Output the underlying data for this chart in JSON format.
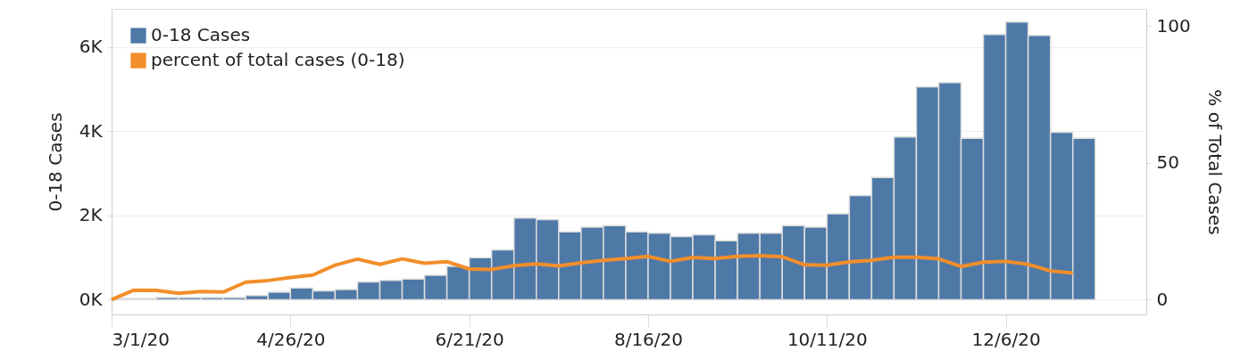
{
  "chart_data": {
    "type": "bar",
    "xlabel": null,
    "ylabel": "0-18 Cases",
    "y2label": "% of Total Cases",
    "x": [
      "2020-03-04T12:00",
      "2020-03-11T12:00",
      "2020-03-18T12:00",
      "2020-03-25T12:00",
      "2020-04-01T12:00",
      "2020-04-08T12:00",
      "2020-04-15T12:00",
      "2020-04-22T12:00",
      "2020-04-29T12:00",
      "2020-05-06T12:00",
      "2020-05-13T12:00",
      "2020-05-20T12:00",
      "2020-05-27T12:00",
      "2020-06-03T12:00",
      "2020-06-10T12:00",
      "2020-06-17T12:00",
      "2020-06-24T12:00",
      "2020-07-01T12:00",
      "2020-07-08T12:00",
      "2020-07-15T12:00",
      "2020-07-22T12:00",
      "2020-07-29T12:00",
      "2020-08-05T12:00",
      "2020-08-12T12:00",
      "2020-08-19T12:00",
      "2020-08-26T12:00",
      "2020-09-02T12:00",
      "2020-09-09T12:00",
      "2020-09-16T12:00",
      "2020-09-23T12:00",
      "2020-09-30T12:00",
      "2020-10-07T12:00",
      "2020-10-14T12:00",
      "2020-10-21T12:00",
      "2020-10-28T12:00",
      "2020-11-04T12:00",
      "2020-11-11T12:00",
      "2020-11-18T12:00",
      "2020-11-25T12:00",
      "2020-12-02T12:00",
      "2020-12-09T12:00",
      "2020-12-16T12:00",
      "2020-12-23T12:00",
      "2020-12-30T12:00"
    ],
    "series": [
      {
        "name": "0-18 Cases",
        "color": "#4e79a7",
        "values": [
          30,
          30,
          50,
          50,
          50,
          50,
          100,
          180,
          280,
          210,
          240,
          420,
          460,
          490,
          580,
          790,
          1000,
          1180,
          1940,
          1900,
          1610,
          1720,
          1760,
          1610,
          1580,
          1500,
          1540,
          1400,
          1580,
          1580,
          1760,
          1720,
          2040,
          2470,
          2900,
          3860,
          5050,
          5150,
          3830,
          6290,
          6590,
          6270,
          3970,
          3830
        ]
      },
      {
        "name": "percent of total cases (0-18)",
        "type": "line",
        "axis": "y2",
        "color": "#f28e2b",
        "x": [
          "2020-03-01",
          "2020-03-08",
          "2020-03-15",
          "2020-03-22",
          "2020-03-29",
          "2020-04-05",
          "2020-04-12",
          "2020-04-19",
          "2020-04-26",
          "2020-05-03",
          "2020-05-10",
          "2020-05-17",
          "2020-05-24",
          "2020-05-31",
          "2020-06-07",
          "2020-06-14",
          "2020-06-21",
          "2020-06-28",
          "2020-07-05",
          "2020-07-12",
          "2020-07-19",
          "2020-07-26",
          "2020-08-02",
          "2020-08-09",
          "2020-08-16",
          "2020-08-23",
          "2020-08-30",
          "2020-09-06",
          "2020-09-13",
          "2020-09-20",
          "2020-09-27",
          "2020-10-04",
          "2020-10-11",
          "2020-10-18",
          "2020-10-25",
          "2020-11-01",
          "2020-11-08",
          "2020-11-15",
          "2020-11-22",
          "2020-11-29",
          "2020-12-06",
          "2020-12-13",
          "2020-12-20",
          "2020-12-27"
        ],
        "values": [
          0,
          3.5,
          3.4,
          2.3,
          3.0,
          2.8,
          6.4,
          7.0,
          8.1,
          9.0,
          12.6,
          14.8,
          12.9,
          14.9,
          13.3,
          13.9,
          11.2,
          11.0,
          12.4,
          13.1,
          12.3,
          13.5,
          14.4,
          15.0,
          15.8,
          14.0,
          15.4,
          15.0,
          15.8,
          16.1,
          15.7,
          12.7,
          12.6,
          13.8,
          14.4,
          15.5,
          15.5,
          14.9,
          12.1,
          13.7,
          14.0,
          12.9,
          10.5,
          9.7
        ]
      }
    ],
    "xlim": [
      "2020-03-01",
      "2021-01-19"
    ],
    "xticks": [
      {
        "value": "2020-03-01",
        "label": "3/1/20"
      },
      {
        "value": "2020-04-26",
        "label": "4/26/20"
      },
      {
        "value": "2020-06-21",
        "label": "6/21/20"
      },
      {
        "value": "2020-08-16",
        "label": "8/16/20"
      },
      {
        "value": "2020-10-11",
        "label": "10/11/20"
      },
      {
        "value": "2020-12-06",
        "label": "12/6/20"
      }
    ],
    "ylim": [
      -350,
      6900
    ],
    "yticks": [
      {
        "value": 0,
        "label": "0K"
      },
      {
        "value": 2000,
        "label": "2K"
      },
      {
        "value": 4000,
        "label": "4K"
      },
      {
        "value": 6000,
        "label": "6K"
      }
    ],
    "y2lim": [
      -5.4,
      106.2
    ],
    "y2ticks": [
      0,
      50,
      100
    ],
    "grid": "y",
    "legend": "top left"
  }
}
